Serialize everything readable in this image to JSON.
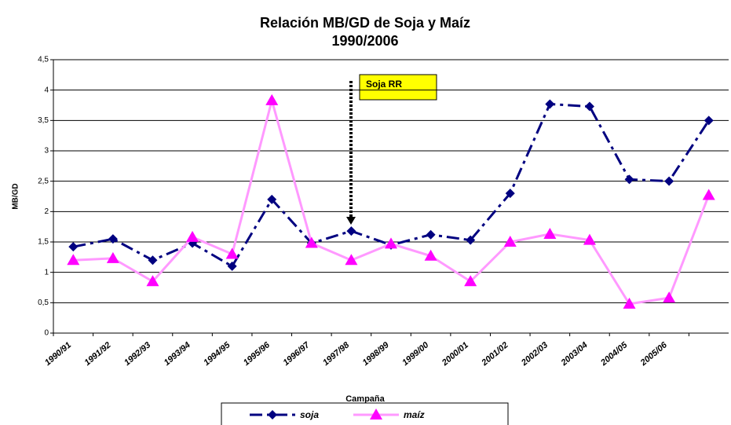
{
  "chart_data": {
    "type": "line",
    "title": "Relación MB/GD de Soja y Maíz",
    "subtitle": "1990/2006",
    "x_label": "Campaña",
    "y_label": "MB/GD",
    "annotation": "Soja RR",
    "categories": [
      "1990/91",
      "1991/92",
      "1992/93",
      "1993/94",
      "1994/95",
      "1995/96",
      "1996/97",
      "1997/98",
      "1998/99",
      "1999/00",
      "2000/01",
      "2001/02",
      "2002/03",
      "2003/04",
      "2004/05",
      "2005/06",
      null
    ],
    "series": [
      {
        "name": "soja",
        "color": "#000080",
        "values": [
          1.42,
          1.55,
          1.2,
          1.48,
          1.1,
          2.2,
          1.48,
          1.68,
          1.45,
          1.62,
          1.53,
          2.3,
          3.77,
          3.73,
          2.53,
          2.5,
          3.5
        ]
      },
      {
        "name": "maíz",
        "color": "#ff00ff",
        "values": [
          1.2,
          1.23,
          0.85,
          1.58,
          1.3,
          3.83,
          1.48,
          1.2,
          1.47,
          1.27,
          0.85,
          1.5,
          1.63,
          1.53,
          0.48,
          0.58,
          2.27
        ]
      }
    ],
    "ylim": [
      0,
      4.5
    ],
    "yticks": [
      0,
      {
        "value": 0.5,
        "label": "0,5"
      },
      1,
      {
        "value": 1.5,
        "label": "1,5"
      },
      2,
      {
        "value": 2.5,
        "label": "2,5"
      },
      3,
      {
        "value": 3.5,
        "label": "3,5"
      },
      4,
      {
        "value": 4.5,
        "label": "4,5"
      }
    ],
    "grid": true,
    "legend": "bottom"
  }
}
